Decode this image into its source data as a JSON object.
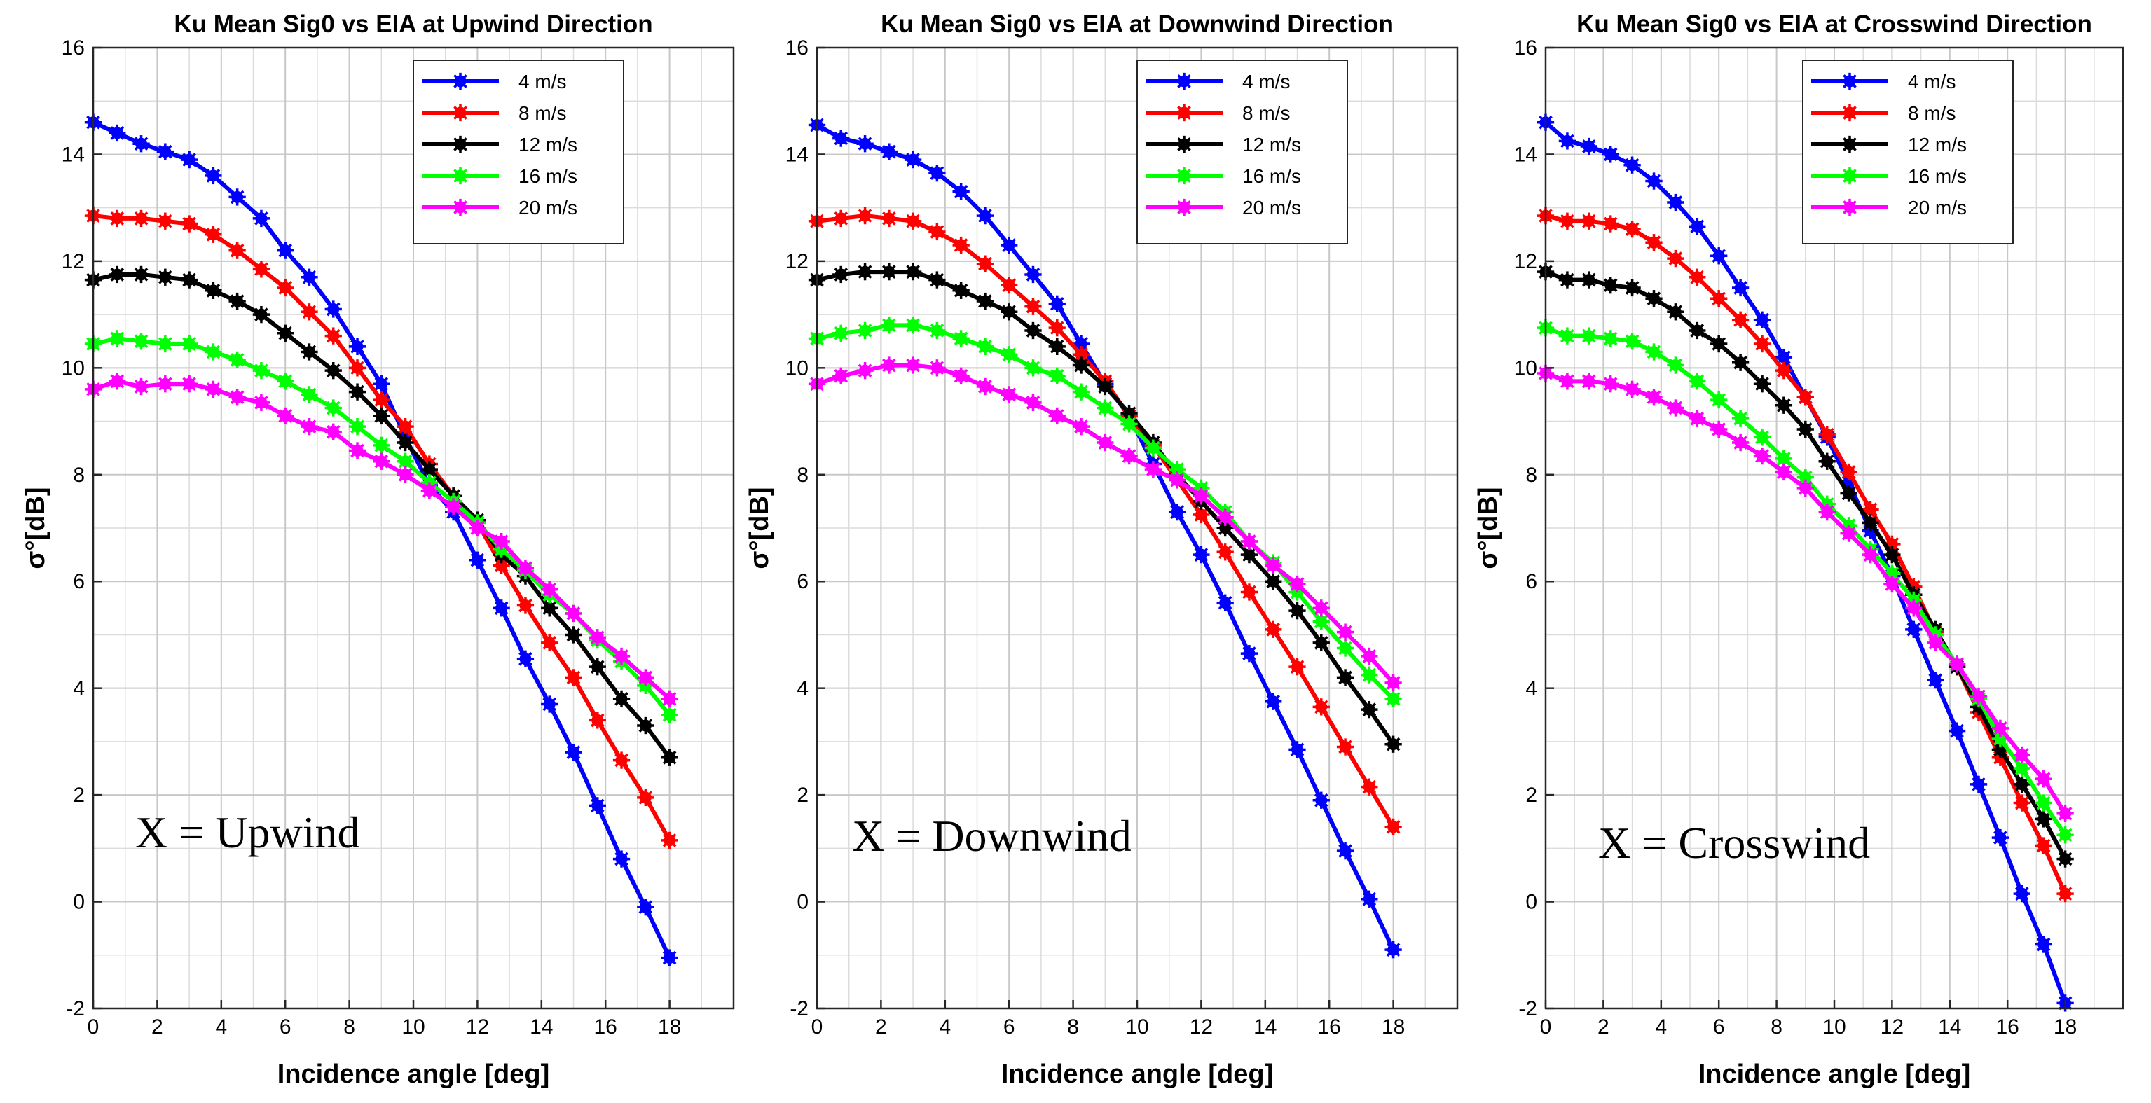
{
  "chart_data": [
    {
      "type": "line",
      "title": "Ku Mean Sig0 vs EIA at Upwind Direction",
      "xlabel": "Incidence angle [deg]",
      "ylabel": "σ°[dB]",
      "xlim": [
        0,
        20
      ],
      "ylim": [
        -2,
        16
      ],
      "xticks": [
        0,
        2,
        4,
        6,
        8,
        10,
        12,
        14,
        16,
        18
      ],
      "yticks": [
        -2,
        0,
        2,
        4,
        6,
        8,
        10,
        12,
        14,
        16
      ],
      "grid": true,
      "legend_position": "top-right",
      "annotation": "X = Upwind",
      "x": [
        0,
        0.75,
        1.5,
        2.25,
        3,
        3.75,
        4.5,
        5.25,
        6,
        6.75,
        7.5,
        8.25,
        9,
        9.75,
        10.5,
        11.25,
        12,
        12.75,
        13.5,
        14.25,
        15,
        15.75,
        16.5,
        17.25,
        18
      ],
      "series": [
        {
          "name": "4 m/s",
          "color": "#0000ff",
          "values": [
            14.6,
            14.4,
            14.2,
            14.05,
            13.9,
            13.6,
            13.2,
            12.8,
            12.2,
            11.7,
            11.1,
            10.4,
            9.7,
            8.7,
            7.8,
            7.3,
            6.4,
            5.5,
            4.55,
            3.7,
            2.8,
            1.8,
            0.8,
            -0.1,
            -1.05
          ]
        },
        {
          "name": "8 m/s",
          "color": "#ff0000",
          "values": [
            12.85,
            12.8,
            12.8,
            12.75,
            12.7,
            12.5,
            12.2,
            11.85,
            11.5,
            11.05,
            10.6,
            10.0,
            9.4,
            8.9,
            8.2,
            7.6,
            7.1,
            6.3,
            5.55,
            4.85,
            4.2,
            3.4,
            2.65,
            1.95,
            1.15
          ]
        },
        {
          "name": "12 m/s",
          "color": "#000000",
          "values": [
            11.65,
            11.75,
            11.75,
            11.7,
            11.65,
            11.45,
            11.25,
            11.0,
            10.65,
            10.3,
            9.95,
            9.55,
            9.1,
            8.6,
            8.1,
            7.6,
            7.15,
            6.5,
            6.1,
            5.5,
            5.0,
            4.4,
            3.8,
            3.3,
            2.7
          ]
        },
        {
          "name": "16 m/s",
          "color": "#00ff00",
          "values": [
            10.45,
            10.55,
            10.5,
            10.45,
            10.45,
            10.3,
            10.15,
            9.95,
            9.75,
            9.5,
            9.25,
            8.9,
            8.55,
            8.25,
            7.85,
            7.5,
            7.1,
            6.6,
            6.2,
            5.75,
            5.4,
            4.9,
            4.5,
            4.05,
            3.5
          ]
        },
        {
          "name": "20 m/s",
          "color": "#ff00ff",
          "values": [
            9.6,
            9.75,
            9.65,
            9.7,
            9.7,
            9.6,
            9.45,
            9.35,
            9.1,
            8.9,
            8.8,
            8.45,
            8.25,
            8.0,
            7.7,
            7.4,
            7.0,
            6.75,
            6.25,
            5.85,
            5.4,
            4.95,
            4.6,
            4.2,
            3.8
          ]
        }
      ]
    },
    {
      "type": "line",
      "title": "Ku Mean Sig0 vs EIA at Downwind Direction",
      "xlabel": "Incidence angle [deg]",
      "ylabel": "σ°[dB]",
      "xlim": [
        0,
        20
      ],
      "ylim": [
        -2,
        16
      ],
      "xticks": [
        0,
        2,
        4,
        6,
        8,
        10,
        12,
        14,
        16,
        18
      ],
      "yticks": [
        -2,
        0,
        2,
        4,
        6,
        8,
        10,
        12,
        14,
        16
      ],
      "grid": true,
      "legend_position": "top-right",
      "annotation": "X = Downwind",
      "x": [
        0,
        0.75,
        1.5,
        2.25,
        3,
        3.75,
        4.5,
        5.25,
        6,
        6.75,
        7.5,
        8.25,
        9,
        9.75,
        10.5,
        11.25,
        12,
        12.75,
        13.5,
        14.25,
        15,
        15.75,
        16.5,
        17.25,
        18
      ],
      "series": [
        {
          "name": "4 m/s",
          "color": "#0000ff",
          "values": [
            14.55,
            14.3,
            14.2,
            14.05,
            13.9,
            13.65,
            13.3,
            12.85,
            12.3,
            11.75,
            11.2,
            10.45,
            9.7,
            9.1,
            8.2,
            7.3,
            6.5,
            5.6,
            4.65,
            3.75,
            2.85,
            1.9,
            0.95,
            0.05,
            -0.9
          ]
        },
        {
          "name": "8 m/s",
          "color": "#ff0000",
          "values": [
            12.75,
            12.8,
            12.85,
            12.8,
            12.75,
            12.55,
            12.3,
            11.95,
            11.55,
            11.15,
            10.75,
            10.25,
            9.75,
            9.1,
            8.55,
            7.9,
            7.25,
            6.55,
            5.8,
            5.1,
            4.4,
            3.65,
            2.9,
            2.15,
            1.4
          ]
        },
        {
          "name": "12 m/s",
          "color": "#000000",
          "values": [
            11.65,
            11.75,
            11.8,
            11.8,
            11.8,
            11.65,
            11.45,
            11.25,
            11.05,
            10.7,
            10.4,
            10.05,
            9.65,
            9.15,
            8.6,
            8.0,
            7.5,
            7.0,
            6.5,
            6.0,
            5.45,
            4.85,
            4.2,
            3.6,
            2.95
          ]
        },
        {
          "name": "16 m/s",
          "color": "#00ff00",
          "values": [
            10.55,
            10.65,
            10.7,
            10.8,
            10.8,
            10.7,
            10.55,
            10.4,
            10.25,
            10.0,
            9.85,
            9.55,
            9.25,
            8.95,
            8.5,
            8.1,
            7.75,
            7.3,
            6.75,
            6.35,
            5.8,
            5.25,
            4.75,
            4.25,
            3.8
          ]
        },
        {
          "name": "20 m/s",
          "color": "#ff00ff",
          "values": [
            9.7,
            9.85,
            9.95,
            10.05,
            10.05,
            10.0,
            9.85,
            9.65,
            9.5,
            9.35,
            9.1,
            8.9,
            8.6,
            8.35,
            8.1,
            7.9,
            7.6,
            7.2,
            6.75,
            6.3,
            5.95,
            5.5,
            5.05,
            4.6,
            4.1
          ]
        }
      ]
    },
    {
      "type": "line",
      "title": "Ku Mean Sig0 vs EIA at Crosswind Direction",
      "xlabel": "Incidence angle [deg]",
      "ylabel": "σ°[dB]",
      "xlim": [
        0,
        20
      ],
      "ylim": [
        -2,
        16
      ],
      "xticks": [
        0,
        2,
        4,
        6,
        8,
        10,
        12,
        14,
        16,
        18
      ],
      "yticks": [
        -2,
        0,
        2,
        4,
        6,
        8,
        10,
        12,
        14,
        16
      ],
      "grid": true,
      "legend_position": "top-right",
      "annotation": "X = Crosswind",
      "x": [
        0,
        0.75,
        1.5,
        2.25,
        3,
        3.75,
        4.5,
        5.25,
        6,
        6.75,
        7.5,
        8.25,
        9,
        9.75,
        10.5,
        11.25,
        12,
        12.75,
        13.5,
        14.25,
        15,
        15.75,
        16.5,
        17.25,
        18
      ],
      "series": [
        {
          "name": "4 m/s",
          "color": "#0000ff",
          "values": [
            14.6,
            14.25,
            14.15,
            14.0,
            13.8,
            13.5,
            13.1,
            12.65,
            12.1,
            11.5,
            10.9,
            10.2,
            9.45,
            8.7,
            7.85,
            6.95,
            6.1,
            5.1,
            4.15,
            3.2,
            2.2,
            1.2,
            0.15,
            -0.8,
            -1.9
          ]
        },
        {
          "name": "8 m/s",
          "color": "#ff0000",
          "values": [
            12.85,
            12.75,
            12.75,
            12.7,
            12.6,
            12.35,
            12.05,
            11.7,
            11.3,
            10.9,
            10.45,
            9.95,
            9.45,
            8.75,
            8.05,
            7.35,
            6.7,
            5.9,
            5.05,
            4.4,
            3.55,
            2.7,
            1.85,
            1.05,
            0.15
          ]
        },
        {
          "name": "12 m/s",
          "color": "#000000",
          "values": [
            11.8,
            11.65,
            11.65,
            11.55,
            11.5,
            11.3,
            11.05,
            10.7,
            10.45,
            10.1,
            9.7,
            9.3,
            8.85,
            8.25,
            7.65,
            7.1,
            6.5,
            5.75,
            5.1,
            4.4,
            3.65,
            2.85,
            2.2,
            1.55,
            0.8
          ]
        },
        {
          "name": "16 m/s",
          "color": "#00ff00",
          "values": [
            10.75,
            10.6,
            10.6,
            10.55,
            10.5,
            10.3,
            10.05,
            9.75,
            9.4,
            9.05,
            8.7,
            8.3,
            7.95,
            7.45,
            7.05,
            6.6,
            6.15,
            5.65,
            5.0,
            4.45,
            3.8,
            3.05,
            2.5,
            1.85,
            1.25
          ]
        },
        {
          "name": "20 m/s",
          "color": "#ff00ff",
          "values": [
            9.9,
            9.75,
            9.75,
            9.7,
            9.6,
            9.45,
            9.25,
            9.05,
            8.85,
            8.6,
            8.35,
            8.05,
            7.75,
            7.3,
            6.9,
            6.5,
            5.95,
            5.5,
            4.85,
            4.45,
            3.85,
            3.25,
            2.75,
            2.3,
            1.65
          ]
        }
      ]
    }
  ]
}
